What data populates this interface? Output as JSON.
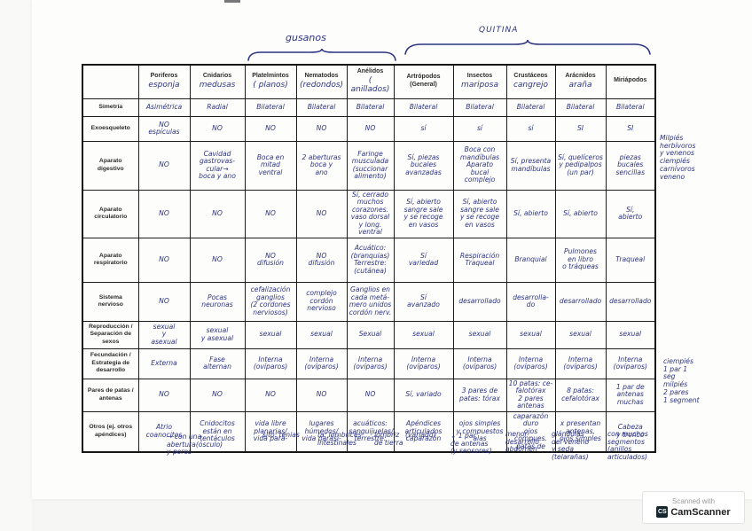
{
  "braces": {
    "left_label": "gusanos",
    "right_label": "QUITINA"
  },
  "ink_color": "#2d3480",
  "table": {
    "columns": [
      {
        "printed": "Poriferos",
        "hand": "esponja"
      },
      {
        "printed": "Cnidarios",
        "hand": "medusas"
      },
      {
        "printed": "Platelmintos",
        "hand": "( planos)"
      },
      {
        "printed": "Nematodos",
        "hand": "(redondos)"
      },
      {
        "printed": "Anélidos",
        "hand": "( anillados)"
      },
      {
        "printed": "Artrópodos\n(General)",
        "hand": ""
      },
      {
        "printed": "Insectos",
        "hand": "mariposa"
      },
      {
        "printed": "Crustáceos",
        "hand": "cangrejo"
      },
      {
        "printed": "Arácnidos",
        "hand": "araña"
      },
      {
        "printed": "Miriápodos",
        "hand": ""
      }
    ],
    "rows": [
      {
        "label": "Simetría",
        "cells": [
          "Asimétrica",
          "Radial",
          "Bilateral",
          "Bilateral",
          "Bilateral",
          "Bilateral",
          "Bilateral",
          "Bilateral",
          "Bilateral",
          "Bilateral"
        ]
      },
      {
        "label": "Exoesqueleto",
        "cells": [
          "NO\nespículas",
          "NO",
          "NO",
          "NO",
          "NO",
          "sí",
          "sí",
          "sí",
          "SI",
          "SI"
        ]
      },
      {
        "label": "Aparato\ndigestivo",
        "cells": [
          "NO",
          "Cavidad\ngastrovas-\ncular→\nboca y ano",
          "Boca en\nmitad\nventral",
          "2 aberturas\nboca y\nano",
          "Faringe\nmusculada\n(succionar\nalimento)",
          "Sí, piezas\nbucales\navanzadas",
          "Boca con\nmandíbulas\nAparato\nbucal complejo",
          "Sí, presenta\nmandíbulas",
          "Sí, quelíceros\ny pedipalpos\n(un par)",
          "piezas\nbucales\nsencillas"
        ]
      },
      {
        "label": "Aparato\ncirculatorio",
        "cells": [
          "NO",
          "NO",
          "NO",
          "NO",
          "Sí, cerrado\nmuchos\ncorazones.\nvaso dorsal\ny long. ventral",
          "Sí, abierto\nsangre sale\ny se recoge\nen vasos",
          "Sí, abierto\nsangre sale\ny se recoge\nen vasos",
          "Sí, abierto",
          "Sí, abierto",
          "Sí,\nabierto"
        ]
      },
      {
        "label": "Aparato\nrespiratorio",
        "cells": [
          "NO",
          "NO",
          "NO\ndifusión",
          "NO\ndifusión",
          "Acuático:\n(branquias)\nTerrestre:\n(cutánea)",
          "Sí\nvariedad",
          "Respiración\nTraqueal",
          "Branquial",
          "Pulmones\nen libro\no tráqueas",
          "Traqueal"
        ]
      },
      {
        "label": "Sistema\nnervioso",
        "cells": [
          "NO",
          "Pocas\nneuronas",
          "cefalización\nganglios\n(2 cordones\nnerviosos)",
          "complejo\ncordón\nnervioso",
          "Ganglios en\ncada metá-\nmero unidos\ncordón nerv.",
          "Sí\navanzado",
          "desarrollado",
          "desarrolla-\ndo",
          "desarrollado",
          "desarrollado"
        ]
      },
      {
        "label": "Reproducción /\nSeparación de\nsexos",
        "cells": [
          "sexual\ny\nasexual",
          "sexual\ny asexual",
          "sexual",
          "sexual",
          "Sexual",
          "sexual",
          "sexual",
          "sexual",
          "sexual",
          "sexual"
        ]
      },
      {
        "label": "Fecundación /\nEstrategia de\ndesarrollo",
        "cells": [
          "Externa",
          "Fase\nalternan",
          "Interna\n(ovíparos)",
          "Interna\n(ovíparos)",
          "Interna\n(ovíparos)",
          "Interna\n(ovíparos)",
          "Interna\n(ovíparos)",
          "Interna\n(ovíparos)",
          "Interna\n(ovíparos)",
          "Interna\n(ovíparos)"
        ]
      },
      {
        "label": "Pares de patas /\nantenas",
        "cells": [
          "NO",
          "NO",
          "NO",
          "NO",
          "NO",
          "Sí, variado",
          "3 pares de\npatas: tórax",
          "10 patas: ce-\nfalotórax\n2 pares antenas",
          "8 patas:\ncefalotórax",
          "1 par de antenas\nmuchas"
        ]
      },
      {
        "label": "Otros (ej. otros\napéndices)",
        "cells": [
          "Atrio\ncoanocitos",
          "Cnidocitos\nestán en\ntentáculos",
          "vida libre\nplanarias/\nvida pará-",
          "lugares\nhúmedos/\nvida parási-",
          "acuáticos:\nsanguijuelas/\nterrestre:",
          "Apéndices\narticulados\ncaparazón",
          "ojos simples\ny compuestos\nalas",
          "caparazón duro\nojos compues.\npatas de",
          "x presentan\nantenas,\nojos simples",
          "Cabeza\ny tronco"
        ]
      }
    ]
  },
  "below_notes": {
    "poriferos": "→ con una\nabertura(ósculo)\ny poros",
    "platelmintos": "sito: tenias",
    "nematodos": "ta: lombrices\nintestinales",
    "anelidos": "lombriz\nde tierra",
    "artropodos": "(variado)",
    "insectos": "↓ 1 par\nde antenas\n(y sensores)",
    "crustaceos": "menor\ndesarrollo\nabdomen",
    "aracnidos": "glándulas\ndel veneno\ny seda\n(telarañas)",
    "miriapodos": "con muchos\nsegmentos\n(anillos\narticulados)"
  },
  "margin_notes": {
    "digestivo": "Milpiés\nherbívoros\ny venenos\nciempiés\ncarnívoros\nveneno",
    "patas": "ciempiés\n1 par 1\nseg\nmilpiés\n2 pares\n1 segment"
  },
  "badge": {
    "line1": "Scanned with",
    "logo": "CS",
    "name": "CamScanner"
  }
}
